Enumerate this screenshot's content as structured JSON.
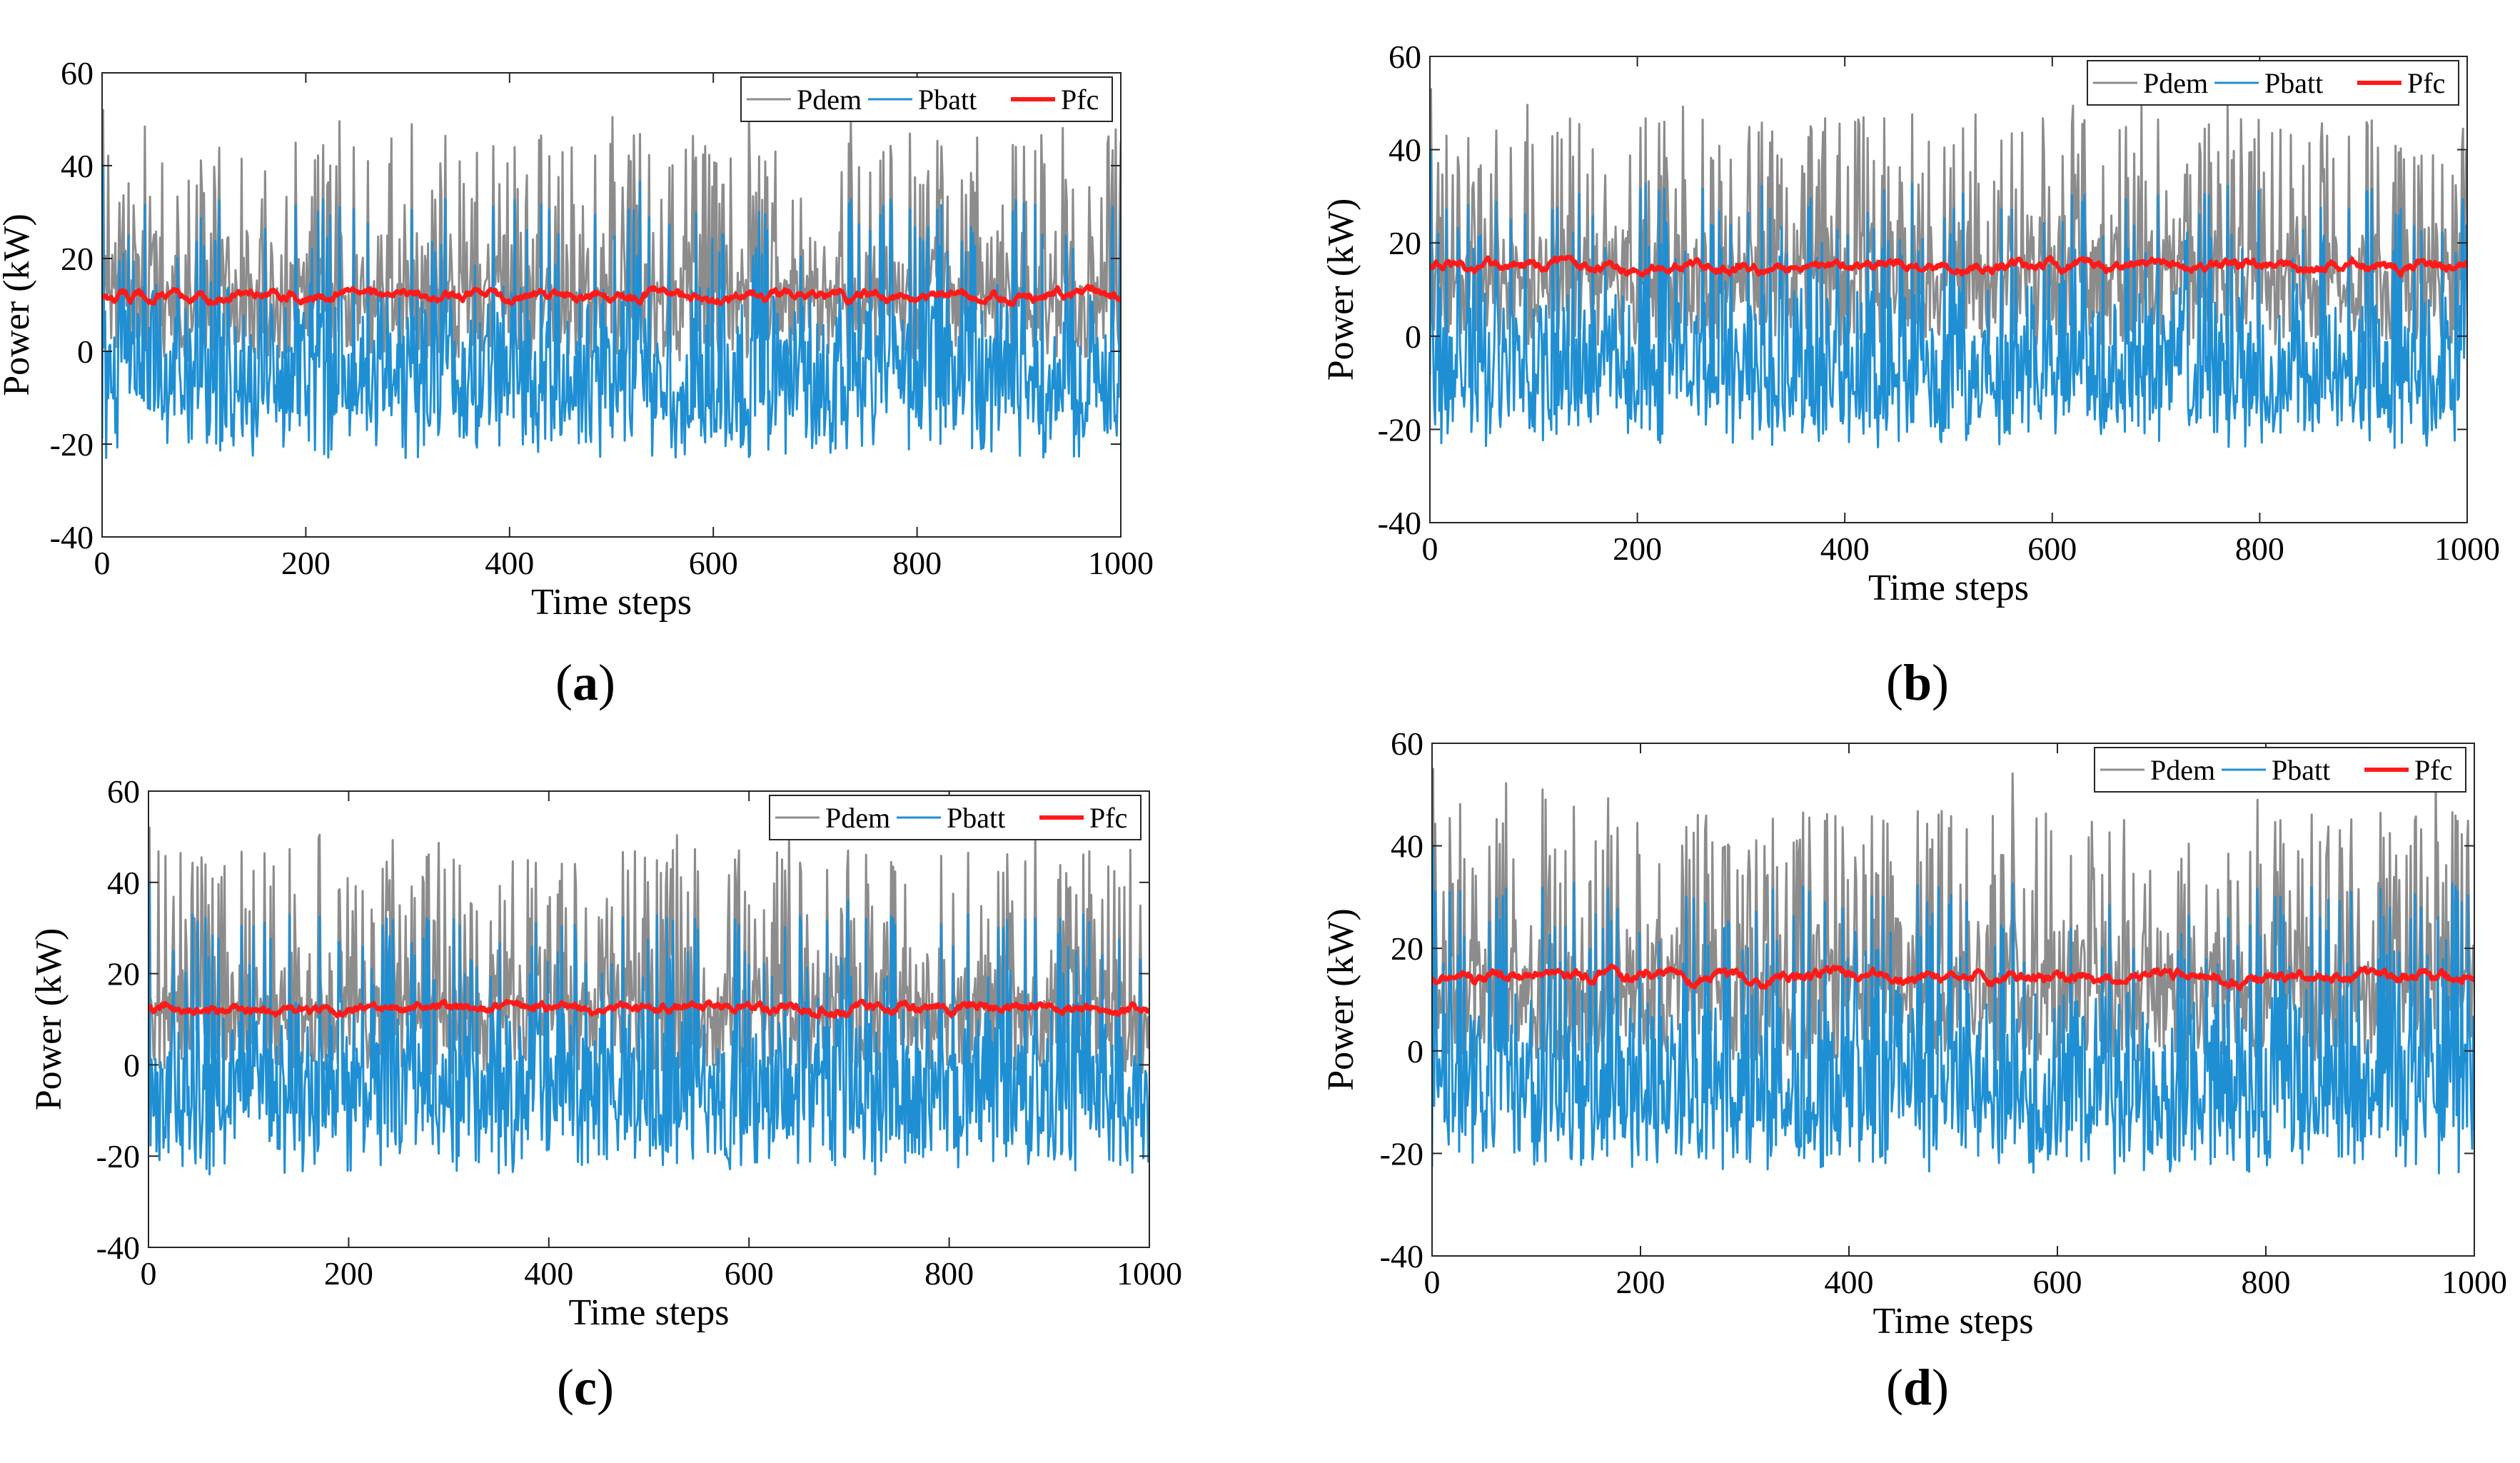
{
  "chart_data": [
    {
      "type": "line",
      "panel_label": "a",
      "xlabel": "Time steps",
      "ylabel": "Power (kW)",
      "xlim": [
        0,
        1000
      ],
      "ylim": [
        -40,
        60
      ],
      "xticks": [
        "0",
        "200",
        "400",
        "600",
        "800",
        "1000"
      ],
      "yticks": [
        "60",
        "40",
        "20",
        "0",
        "-20",
        "-40"
      ],
      "legend_position": "top-right",
      "series": [
        {
          "name": "Pdem",
          "color": "#8c8c8c",
          "peak_max": 52,
          "typical_peak": 45,
          "base_mean": 13,
          "min": -2
        },
        {
          "name": "Pbatt",
          "color": "#1f8fd3",
          "peak_max": 40,
          "typical_peak": 33,
          "min": -23,
          "typical_min": -21
        },
        {
          "name": "Pfc",
          "color": "#ff1a1a",
          "mean": 12,
          "range": [
            6,
            16
          ]
        }
      ]
    },
    {
      "type": "line",
      "panel_label": "b",
      "xlabel": "Time steps",
      "ylabel": "Power (kW)",
      "xlim": [
        0,
        1000
      ],
      "ylim": [
        -40,
        60
      ],
      "xticks": [
        "0",
        "200",
        "400",
        "600",
        "800",
        "1000"
      ],
      "yticks": [
        "60",
        "40",
        "20",
        "0",
        "-20",
        "-40"
      ],
      "legend_position": "top-right",
      "series": [
        {
          "name": "Pdem",
          "color": "#8c8c8c",
          "peak_max": 53,
          "typical_peak": 45,
          "base_mean": 15,
          "min": -2
        },
        {
          "name": "Pbatt",
          "color": "#1f8fd3",
          "peak_max": 40,
          "typical_peak": 33,
          "min": -24,
          "typical_min": -21
        },
        {
          "name": "Pfc",
          "color": "#ff1a1a",
          "mean": 15,
          "range": [
            12,
            17
          ]
        }
      ]
    },
    {
      "type": "line",
      "panel_label": "c",
      "xlabel": "Time steps",
      "ylabel": "Power (kW)",
      "xlim": [
        0,
        1000
      ],
      "ylim": [
        -40,
        60
      ],
      "xticks": [
        "0",
        "200",
        "400",
        "600",
        "800",
        "1000"
      ],
      "yticks": [
        "60",
        "40",
        "20",
        "0",
        "-20",
        "-40"
      ],
      "legend_position": "top-right",
      "series": [
        {
          "name": "Pdem",
          "color": "#8c8c8c",
          "peak_max": 52,
          "typical_peak": 45,
          "base_mean": 13,
          "min": -2
        },
        {
          "name": "Pbatt",
          "color": "#1f8fd3",
          "peak_max": 40,
          "typical_peak": 33,
          "min": -24,
          "typical_min": -22
        },
        {
          "name": "Pfc",
          "color": "#ff1a1a",
          "mean": 12.5,
          "range": [
            10,
            14
          ]
        }
      ]
    },
    {
      "type": "line",
      "panel_label": "d",
      "xlabel": "Time steps",
      "ylabel": "Power (kW)",
      "xlim": [
        0,
        1000
      ],
      "ylim": [
        -40,
        60
      ],
      "xticks": [
        "0",
        "200",
        "400",
        "600",
        "800",
        "1000"
      ],
      "yticks": [
        "60",
        "40",
        "20",
        "0",
        "-20",
        "-40"
      ],
      "legend_position": "top-right",
      "series": [
        {
          "name": "Pdem",
          "color": "#8c8c8c",
          "peak_max": 55,
          "typical_peak": 45,
          "base_mean": 15,
          "min": -2
        },
        {
          "name": "Pbatt",
          "color": "#1f8fd3",
          "peak_max": 40,
          "typical_peak": 33,
          "min": -24,
          "typical_min": -22
        },
        {
          "name": "Pfc",
          "color": "#ff1a1a",
          "mean": 14.5,
          "range": [
            12,
            17
          ]
        }
      ]
    }
  ]
}
